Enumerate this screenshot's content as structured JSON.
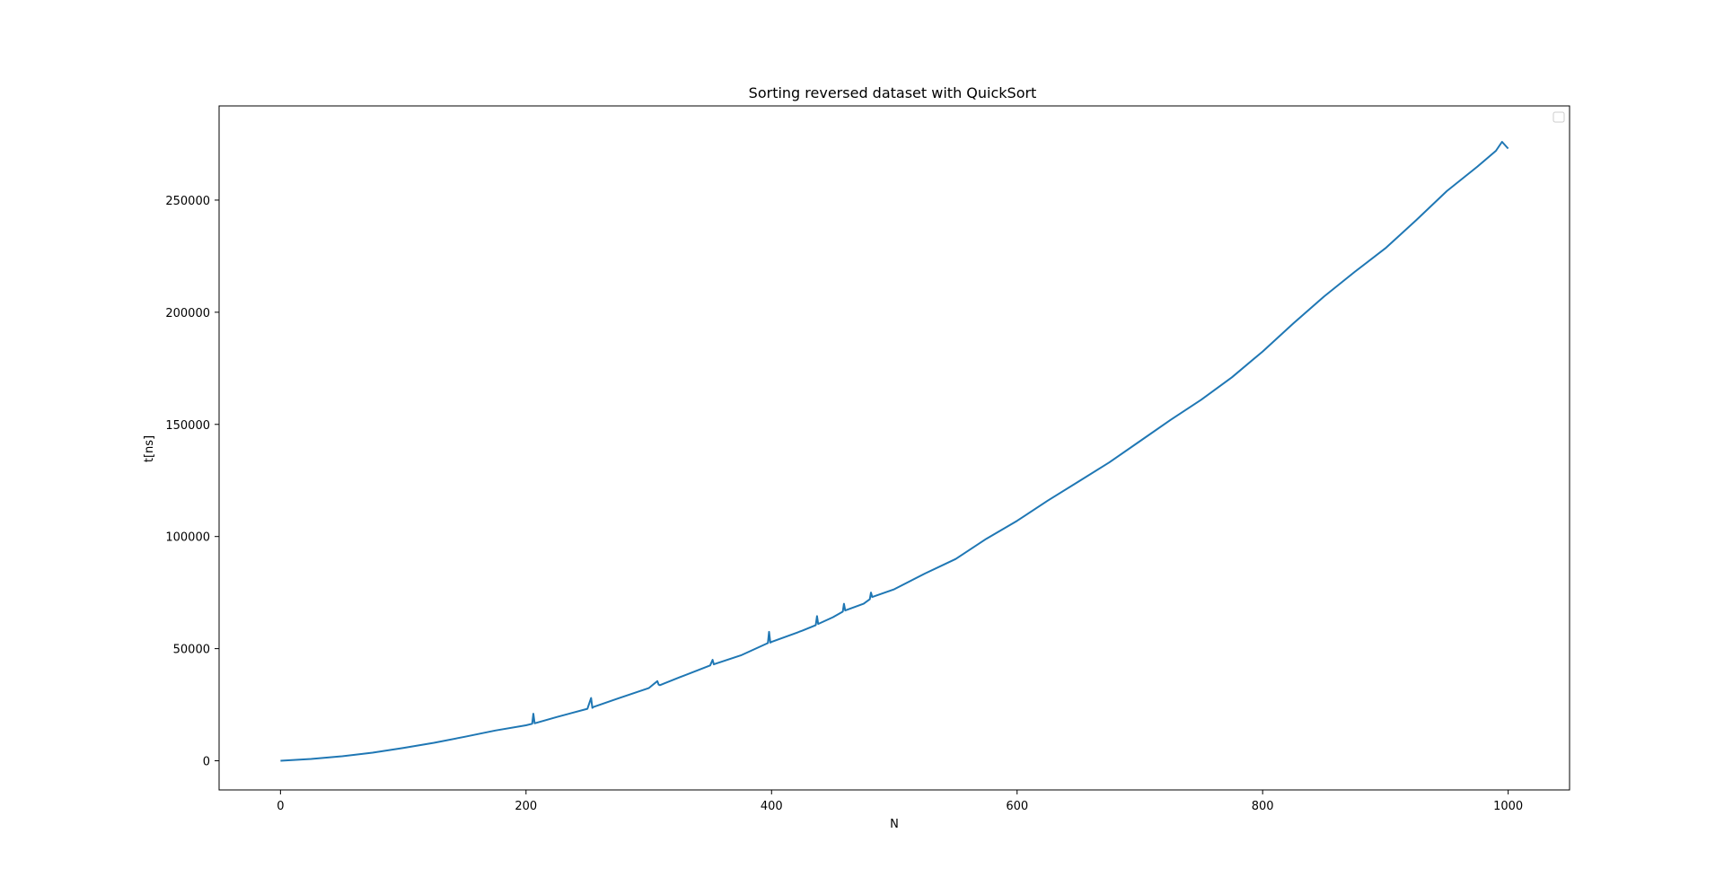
{
  "chart_data": {
    "type": "line",
    "title": "Sorting reversed dataset with QuickSort",
    "xlabel": "N",
    "ylabel": "t[ns]",
    "xlim": [
      -50,
      1050
    ],
    "ylim": [
      -13000,
      292000
    ],
    "xticks": [
      0,
      200,
      400,
      600,
      800,
      1000
    ],
    "yticks": [
      0,
      50000,
      100000,
      150000,
      200000,
      250000
    ],
    "xtick_labels": [
      "0",
      "200",
      "400",
      "600",
      "800",
      "1000"
    ],
    "ytick_labels": [
      "0",
      "50000",
      "100000",
      "150000",
      "200000",
      "250000"
    ],
    "legend": {
      "placement": "upper-right",
      "entries": []
    },
    "grid": false,
    "series": [
      {
        "color": "#1f77b4",
        "x": [
          0,
          25,
          50,
          75,
          100,
          125,
          150,
          175,
          200,
          205,
          206,
          207,
          225,
          250,
          253,
          254,
          255,
          275,
          300,
          307,
          308,
          309,
          325,
          350,
          352,
          353,
          354,
          375,
          397,
          398,
          399,
          400,
          425,
          436,
          437,
          438,
          450,
          458,
          459,
          460,
          475,
          480,
          481,
          482,
          500,
          525,
          550,
          575,
          600,
          625,
          650,
          675,
          700,
          725,
          750,
          775,
          800,
          825,
          850,
          875,
          900,
          925,
          950,
          975,
          990,
          995,
          1000
        ],
        "y": [
          0,
          800,
          2000,
          3600,
          5700,
          8000,
          10700,
          13500,
          15800,
          16500,
          21000,
          16700,
          19500,
          23200,
          28000,
          23600,
          24000,
          27800,
          32400,
          35500,
          34000,
          33700,
          37200,
          42500,
          45000,
          43000,
          43200,
          47000,
          52500,
          57500,
          52700,
          53000,
          58000,
          60500,
          64500,
          61000,
          64000,
          66500,
          70000,
          67000,
          70000,
          72000,
          75000,
          73000,
          76500,
          83500,
          90000,
          99000,
          107000,
          116000,
          124500,
          133000,
          142500,
          152000,
          161000,
          171000,
          182500,
          195000,
          207000,
          218000,
          228500,
          241000,
          254000,
          265000,
          272000,
          276000,
          273000
        ]
      }
    ]
  }
}
